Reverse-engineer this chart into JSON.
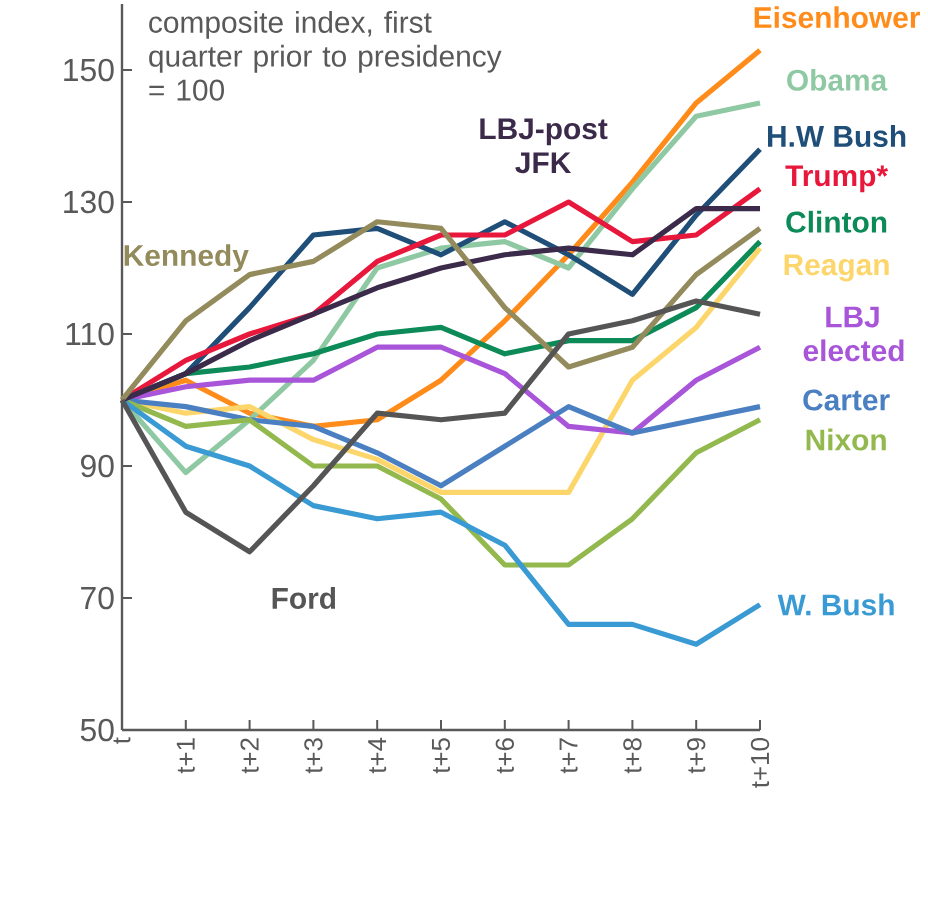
{
  "chart_data": {
    "type": "line",
    "title": "composite index, first quarter prior to presidency = 100",
    "categories": [
      "t",
      "t+1",
      "t+2",
      "t+3",
      "t+4",
      "t+5",
      "t+6",
      "t+7",
      "t+8",
      "t+9",
      "t+10"
    ],
    "ylim": [
      50,
      160
    ],
    "yticks": [
      50,
      70,
      90,
      110,
      130,
      150
    ],
    "grid": false,
    "legend": false,
    "series": [
      {
        "name": "Eisenhower",
        "color": "#ff8c1a",
        "values": [
          100,
          103,
          98,
          96,
          97,
          103,
          112,
          122,
          133,
          145,
          153
        ]
      },
      {
        "name": "Obama",
        "color": "#8fc9a3",
        "values": [
          100,
          89,
          97,
          106,
          120,
          123,
          124,
          120,
          132,
          143,
          145
        ]
      },
      {
        "name": "H.W Bush",
        "color": "#1f4e79",
        "values": [
          100,
          104,
          114,
          125,
          126,
          122,
          127,
          122,
          116,
          128,
          138
        ]
      },
      {
        "name": "Trump*",
        "color": "#e8173c",
        "values": [
          100,
          106,
          110,
          113,
          121,
          125,
          125,
          130,
          124,
          125,
          132
        ]
      },
      {
        "name": "Clinton",
        "color": "#0c8a57",
        "values": [
          100,
          104,
          105,
          107,
          110,
          111,
          107,
          109,
          109,
          114,
          124
        ]
      },
      {
        "name": "Reagan",
        "color": "#fcd66b",
        "values": [
          100,
          98,
          99,
          94,
          91,
          86,
          86,
          86,
          103,
          111,
          123
        ]
      },
      {
        "name": "LBJ elected",
        "color": "#a855d9",
        "values": [
          100,
          102,
          103,
          103,
          108,
          108,
          104,
          96,
          95,
          103,
          108
        ]
      },
      {
        "name": "Carter",
        "color": "#4a7fc1",
        "values": [
          100,
          99,
          97,
          96,
          92,
          87,
          93,
          99,
          95,
          97,
          99
        ]
      },
      {
        "name": "Nixon",
        "color": "#92b84e",
        "values": [
          100,
          96,
          97,
          90,
          90,
          85,
          75,
          75,
          82,
          92,
          97
        ]
      },
      {
        "name": "W. Bush",
        "color": "#3a9ad4",
        "values": [
          100,
          93,
          90,
          84,
          82,
          83,
          78,
          66,
          66,
          63,
          69
        ]
      },
      {
        "name": "LBJ-post JFK",
        "color": "#3b2a4a",
        "values": [
          100,
          104,
          109,
          113,
          117,
          120,
          122,
          123,
          122,
          129,
          129
        ]
      },
      {
        "name": "Kennedy",
        "color": "#938b5c",
        "values": [
          100,
          112,
          119,
          121,
          127,
          126,
          114,
          105,
          108,
          119,
          126
        ]
      },
      {
        "name": "Ford",
        "color": "#555555",
        "values": [
          100,
          83,
          77,
          87,
          98,
          97,
          98,
          110,
          112,
          115,
          113
        ]
      }
    ]
  }
}
